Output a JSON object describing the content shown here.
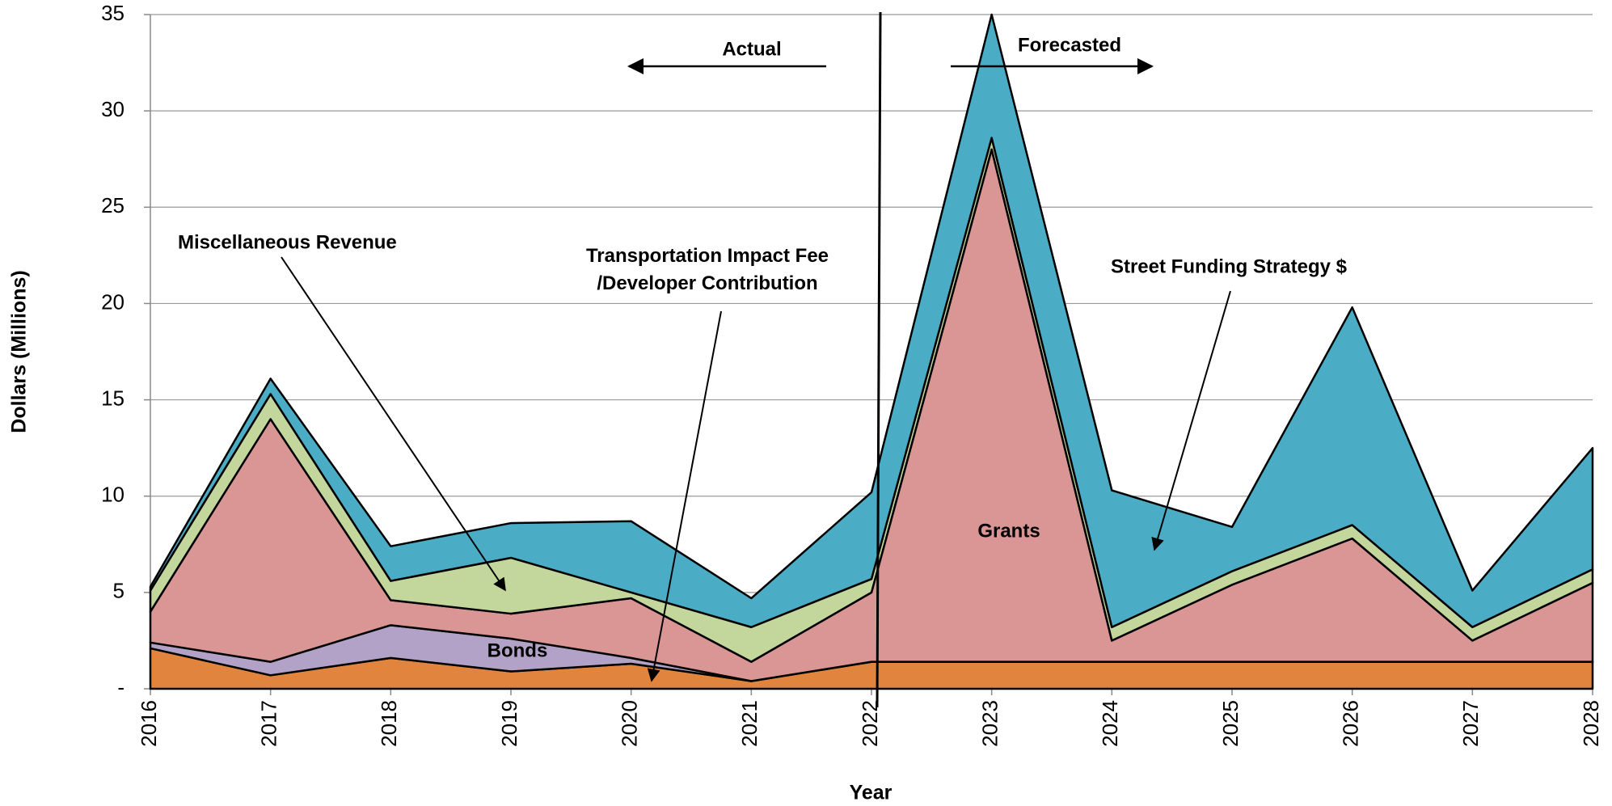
{
  "chart_data": {
    "type": "stacked_area",
    "x_label": "Year",
    "y_label": "Dollars (Millions)",
    "categories": [
      "2016",
      "2017",
      "2018",
      "2019",
      "2020",
      "2021",
      "2022",
      "2023",
      "2024",
      "2025",
      "2026",
      "2027",
      "2028"
    ],
    "series": [
      {
        "name": "Transportation Impact Fee /Developer Contribution",
        "color": "#e0843e",
        "values": [
          2.1,
          0.7,
          1.6,
          0.9,
          1.3,
          0.4,
          1.4,
          1.4,
          1.4,
          1.4,
          1.4,
          1.4,
          1.4
        ]
      },
      {
        "name": "Bonds",
        "color": "#b3a2c7",
        "values": [
          0.3,
          0.7,
          1.7,
          1.7,
          0.3,
          0,
          0,
          0,
          0,
          0,
          0,
          0,
          0
        ]
      },
      {
        "name": "Grants",
        "color": "#d99694",
        "values": [
          1.6,
          12.6,
          1.3,
          1.3,
          3.1,
          1.0,
          3.6,
          26.6,
          1.1,
          4.0,
          6.4,
          1.1,
          4.1
        ]
      },
      {
        "name": "Miscellaneous Revenue",
        "color": "#c3d69b",
        "values": [
          1.1,
          1.3,
          1.0,
          2.9,
          0.3,
          1.8,
          0.7,
          0.6,
          0.7,
          0.7,
          0.7,
          0.7,
          0.7
        ]
      },
      {
        "name": "Street Funding Strategy $",
        "color": "#4bacc6",
        "values": [
          0.2,
          0.8,
          1.8,
          1.8,
          3.7,
          1.5,
          4.5,
          6.4,
          7.1,
          2.3,
          11.3,
          1.9,
          6.3
        ]
      }
    ],
    "annotations": [
      "Actual",
      "Forecasted"
    ],
    "ylim": [
      0,
      35
    ],
    "yticks": [
      {
        "value": 0,
        "label": "-"
      },
      5,
      10,
      15,
      20,
      25,
      30,
      35
    ],
    "grid": true
  }
}
